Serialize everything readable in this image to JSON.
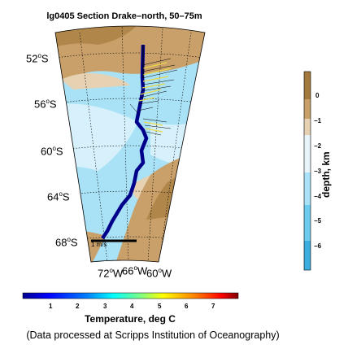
{
  "title": "lg0405 Section Drake–north, 50–75m",
  "lat_labels": [
    {
      "deg": "52",
      "suffix": "S"
    },
    {
      "deg": "56",
      "suffix": "S"
    },
    {
      "deg": "60",
      "suffix": "S"
    },
    {
      "deg": "64",
      "suffix": "S"
    },
    {
      "deg": "68",
      "suffix": "S"
    }
  ],
  "lon_labels": [
    {
      "deg": "72",
      "suffix": "W"
    },
    {
      "deg": "66",
      "suffix": "W"
    },
    {
      "deg": "60",
      "suffix": "W"
    }
  ],
  "scale_label": "1 m/s",
  "depth_colorbar": {
    "title": "depth, km",
    "ticks": [
      "0",
      "−1",
      "−2",
      "−3",
      "−4",
      "−5",
      "−6"
    ],
    "colors": [
      "#a37a3c",
      "#c9a06a",
      "#e7d1b3",
      "#e8f4f8",
      "#a9e2f6",
      "#6ccdf0",
      "#3aaee0"
    ]
  },
  "temperature_colorbar": {
    "title": "Temperature, deg C",
    "ticks": [
      "1",
      "2",
      "3",
      "4",
      "5",
      "6",
      "7"
    ]
  },
  "credit": "(Data processed at Scripps Institution of Oceanography)",
  "colors": {
    "land": "#c9a06a",
    "land_dark": "#b0864a",
    "shelf": "#e7d1b3",
    "ocean_deep": "#a9e2f6",
    "ocean_light": "#d6f1fb",
    "track": "#00008b"
  }
}
